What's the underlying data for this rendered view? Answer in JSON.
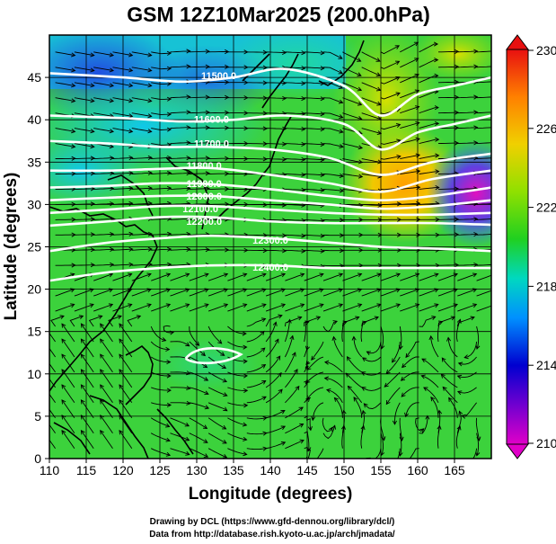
{
  "chart_data": {
    "type": "heatmap",
    "title": "GSM 12Z10Mar2025 (200.0hPa)",
    "xlabel": "Longitude (degrees)",
    "ylabel": "Latitude (degrees)",
    "xlim": [
      110,
      170
    ],
    "ylim": [
      0,
      50
    ],
    "x_ticks": [
      110,
      115,
      120,
      125,
      130,
      135,
      140,
      145,
      150,
      155,
      160,
      165
    ],
    "y_ticks": [
      0,
      5,
      10,
      15,
      20,
      25,
      30,
      35,
      40,
      45
    ],
    "grid": true,
    "colorbar": {
      "min": 210,
      "max": 230,
      "ticks": [
        230,
        226,
        222,
        218,
        214,
        210
      ],
      "colors": [
        "#e000c8",
        "#7000d0",
        "#0000d0",
        "#0090ff",
        "#00d8c0",
        "#20d020",
        "#90e000",
        "#f0d000",
        "#ff8000",
        "#e81010"
      ]
    },
    "contours": [
      {
        "label": "11500.0",
        "value": 11500
      },
      {
        "label": "11600.0",
        "value": 11600
      },
      {
        "label": "11700.0",
        "value": 11700
      },
      {
        "label": "11800.0",
        "value": 11800
      },
      {
        "label": "11900.0",
        "value": 11900
      },
      {
        "label": "12000.0",
        "value": 12000
      },
      {
        "label": "12100.0",
        "value": 12100
      },
      {
        "label": "12200.0",
        "value": 12200
      },
      {
        "label": "12300.0",
        "value": 12300
      },
      {
        "label": "12400.0",
        "value": 12400
      }
    ],
    "field_notes": [
      {
        "lon": 112,
        "lat": 45,
        "value": 215
      },
      {
        "lon": 155,
        "lat": 35,
        "value": 227
      },
      {
        "lon": 168,
        "lat": 32,
        "value": 211
      },
      {
        "lon": 140,
        "lat": 10,
        "value": 221
      }
    ]
  },
  "credits": {
    "line1": "Drawing by DCL (https://www.gfd-dennou.org/library/dcl/)",
    "line2": "Data from http://database.rish.kyoto-u.ac.jp/arch/jmadata/"
  }
}
